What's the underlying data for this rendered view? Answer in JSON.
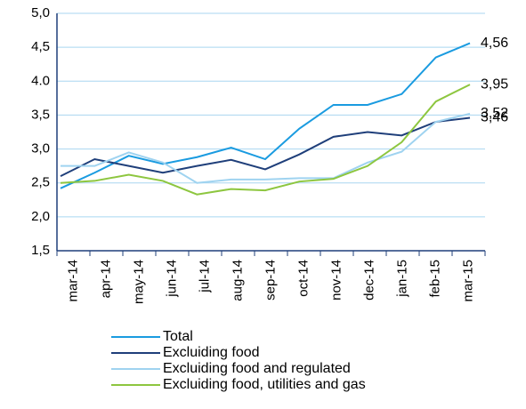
{
  "chart_data": {
    "type": "line",
    "categories": [
      "mar-14",
      "apr-14",
      "may-14",
      "jun-14",
      "jul-14",
      "aug-14",
      "sep-14",
      "oct-14",
      "nov-14",
      "dec-14",
      "jan-15",
      "feb-15",
      "mar-15"
    ],
    "series": [
      {
        "name": "Total",
        "color": "#1a9be0",
        "values": [
          2.42,
          2.65,
          2.9,
          2.78,
          2.88,
          3.02,
          2.85,
          3.3,
          3.65,
          3.65,
          3.81,
          4.35,
          4.56
        ],
        "value_labels": [
          null,
          null,
          null,
          null,
          null,
          null,
          null,
          null,
          null,
          null,
          null,
          null,
          "4,56"
        ]
      },
      {
        "name": "Excluiding food",
        "color": "#1f3f7a",
        "values": [
          2.6,
          2.85,
          2.75,
          2.65,
          2.75,
          2.84,
          2.7,
          2.92,
          3.18,
          3.25,
          3.2,
          3.4,
          3.46
        ],
        "value_labels": [
          null,
          null,
          null,
          null,
          null,
          null,
          null,
          null,
          null,
          null,
          null,
          null,
          "3,46"
        ]
      },
      {
        "name": "Excluiding food and regulated",
        "color": "#9fd3f0",
        "values": [
          2.75,
          2.75,
          2.95,
          2.8,
          2.5,
          2.55,
          2.55,
          2.57,
          2.57,
          2.8,
          2.96,
          3.4,
          3.52
        ],
        "value_labels": [
          null,
          null,
          null,
          null,
          null,
          null,
          null,
          null,
          null,
          null,
          null,
          null,
          "3,52"
        ]
      },
      {
        "name": "Excluiding food, utilities and gas",
        "color": "#8dc63f",
        "values": [
          2.5,
          2.53,
          2.62,
          2.53,
          2.33,
          2.41,
          2.39,
          2.52,
          2.56,
          2.75,
          3.1,
          3.7,
          3.95
        ],
        "value_labels": [
          null,
          null,
          null,
          null,
          null,
          null,
          null,
          null,
          null,
          null,
          null,
          null,
          "3,95"
        ]
      }
    ],
    "ylim": [
      1.5,
      5.0
    ],
    "yticks": [
      {
        "value": 1.5,
        "label": "1,5"
      },
      {
        "value": 2.0,
        "label": "2,0"
      },
      {
        "value": 2.5,
        "label": "2,5"
      },
      {
        "value": 3.0,
        "label": "3,0"
      },
      {
        "value": 3.5,
        "label": "3,5"
      },
      {
        "value": 4.0,
        "label": "4.0"
      },
      {
        "value": 4.5,
        "label": "4,5"
      },
      {
        "value": 5.0,
        "label": "5,0"
      }
    ],
    "grid": true
  }
}
